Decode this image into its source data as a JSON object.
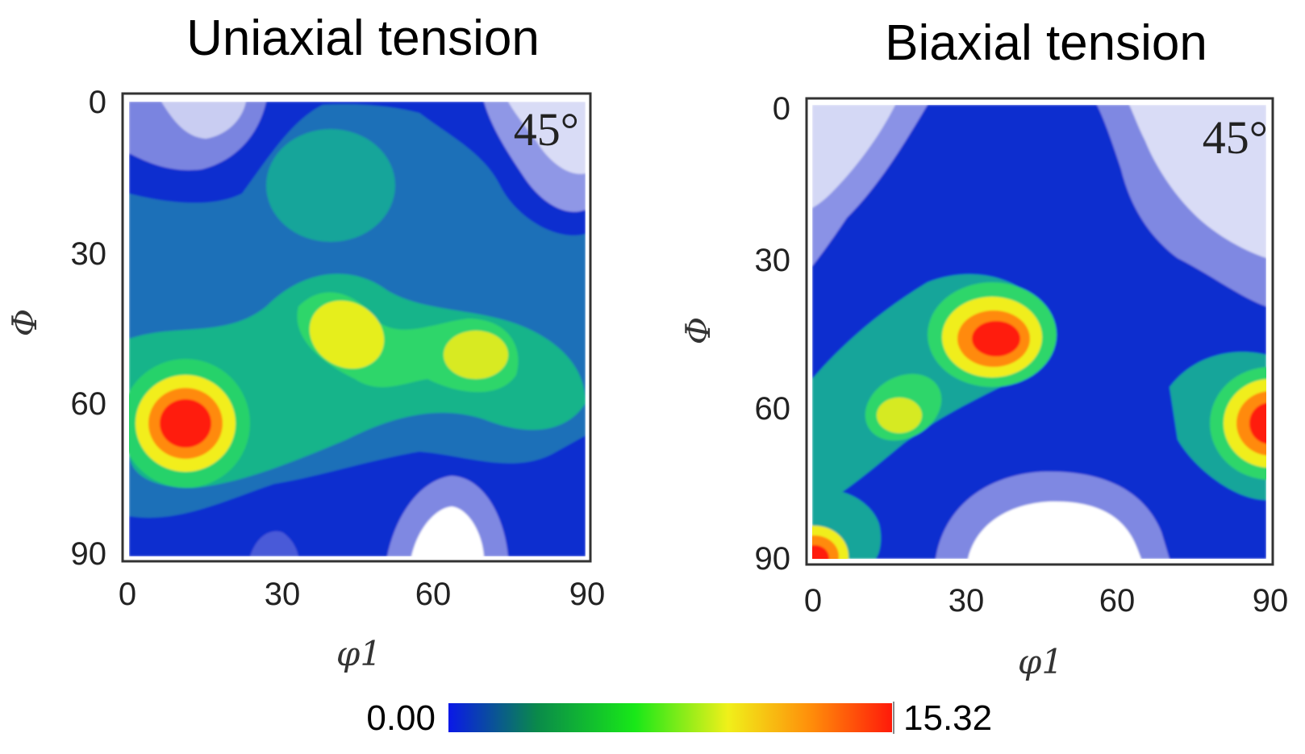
{
  "figure": {
    "colorbar": {
      "min_label": "0.00",
      "max_label": "15.32",
      "min": 0.0,
      "max": 15.32,
      "colormap": [
        "#0a18e8",
        "#0a8a4a",
        "#18e818",
        "#f0f01a",
        "#ff8c0a",
        "#ff1a0a"
      ]
    }
  },
  "chart_data": [
    {
      "type": "heatmap",
      "title": "Uniaxial tension",
      "annotation": "45°",
      "xlabel": "φ1",
      "ylabel": "Φ",
      "xlim": [
        0,
        90
      ],
      "ylim": [
        0,
        90
      ],
      "y_inverted": true,
      "xticks": [
        "0",
        "30",
        "60",
        "90"
      ],
      "yticks": [
        "0",
        "30",
        "60",
        "90"
      ],
      "value_range": [
        0.0,
        15.32
      ],
      "features": [
        {
          "kind": "peak",
          "phi1": 12,
          "Phi": 64,
          "value": 15.3
        },
        {
          "kind": "peak",
          "phi1": 43,
          "Phi": 47,
          "value": 10.5
        },
        {
          "kind": "peak",
          "phi1": 70,
          "Phi": 51,
          "value": 9.5
        },
        {
          "kind": "peak",
          "phi1": 40,
          "Phi": 20,
          "value": 5.0
        },
        {
          "kind": "minimum",
          "phi1": 17,
          "Phi": 2,
          "value": 0.0
        },
        {
          "kind": "minimum",
          "phi1": 86,
          "Phi": 12,
          "value": 0.0
        },
        {
          "kind": "minimum",
          "phi1": 64,
          "Phi": 88,
          "value": 0.0
        },
        {
          "kind": "minimum",
          "phi1": 30,
          "Phi": 89,
          "value": 1.5
        }
      ]
    },
    {
      "type": "heatmap",
      "title": "Biaxial tension",
      "annotation": "45°",
      "xlabel": "φ1",
      "ylabel": "Φ",
      "xlim": [
        0,
        90
      ],
      "ylim": [
        0,
        90
      ],
      "y_inverted": true,
      "xticks": [
        "0",
        "30",
        "60",
        "90"
      ],
      "yticks": [
        "0",
        "30",
        "60",
        "90"
      ],
      "value_range": [
        0.0,
        15.32
      ],
      "features": [
        {
          "kind": "peak",
          "phi1": 36,
          "Phi": 46,
          "value": 15.0
        },
        {
          "kind": "peak",
          "phi1": 90,
          "Phi": 62,
          "value": 15.3
        },
        {
          "kind": "peak",
          "phi1": 17,
          "Phi": 62,
          "value": 10.0
        },
        {
          "kind": "peak",
          "phi1": 0,
          "Phi": 90,
          "value": 13.0
        },
        {
          "kind": "peak",
          "phi1": 50,
          "Phi": 17,
          "value": 3.5
        },
        {
          "kind": "minimum",
          "phi1": 0,
          "Phi": 0,
          "value": 0.0
        },
        {
          "kind": "minimum",
          "phi1": 90,
          "Phi": 5,
          "value": 0.0
        },
        {
          "kind": "minimum",
          "phi1": 53,
          "Phi": 90,
          "value": 0.0
        }
      ]
    }
  ]
}
